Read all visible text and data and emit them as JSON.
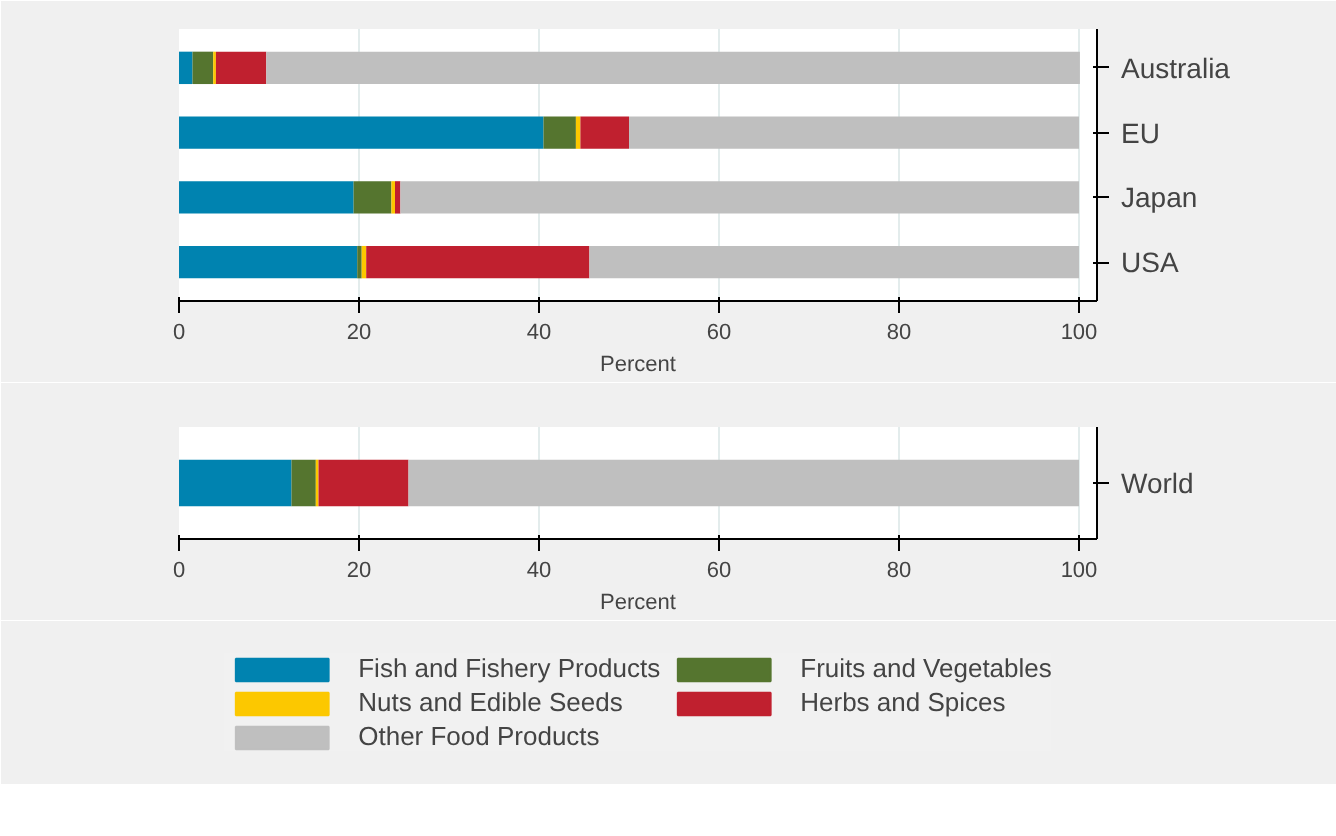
{
  "chart_data": [
    {
      "type": "bar",
      "orientation": "horizontal",
      "stacked": true,
      "categories": [
        "Australia",
        "EU",
        "Japan",
        "USA"
      ],
      "xlabel": "Percent",
      "xlim": [
        0,
        102
      ],
      "xticks": [
        0,
        20,
        40,
        60,
        80,
        100
      ],
      "grid": "x",
      "legend": false,
      "series": [
        {
          "color": "#0083b0",
          "values": [
            1.5,
            40.5,
            19.4,
            19.8
          ]
        },
        {
          "color": "#55752f",
          "values": [
            2.3,
            3.6,
            4.2,
            0.5
          ]
        },
        {
          "color": "#fcc800",
          "values": [
            0.3,
            0.5,
            0.4,
            0.5
          ]
        },
        {
          "color": "#c0202f",
          "values": [
            5.6,
            5.4,
            0.6,
            24.8
          ]
        },
        {
          "color": "#bfbfbf",
          "values": [
            90.4,
            50.0,
            75.4,
            54.4
          ]
        }
      ]
    },
    {
      "type": "bar",
      "orientation": "horizontal",
      "stacked": true,
      "categories": [
        "World"
      ],
      "xlabel": "Percent",
      "xlim": [
        0,
        102
      ],
      "xticks": [
        0,
        20,
        40,
        60,
        80,
        100
      ],
      "grid": "x",
      "legend": "bottom",
      "series": [
        {
          "name": "Fish and Fishery Products",
          "color": "#0083b0",
          "values": [
            12.5
          ]
        },
        {
          "name": "Fruits and Vegetables",
          "color": "#55752f",
          "values": [
            2.7
          ]
        },
        {
          "name": "Nuts and Edible Seeds",
          "color": "#fcc800",
          "values": [
            0.3
          ]
        },
        {
          "name": "Herbs and Spices",
          "color": "#c0202f",
          "values": [
            10.0
          ]
        },
        {
          "name": "Other Food Products",
          "color": "#bfbfbf",
          "values": [
            74.5
          ]
        }
      ]
    }
  ]
}
